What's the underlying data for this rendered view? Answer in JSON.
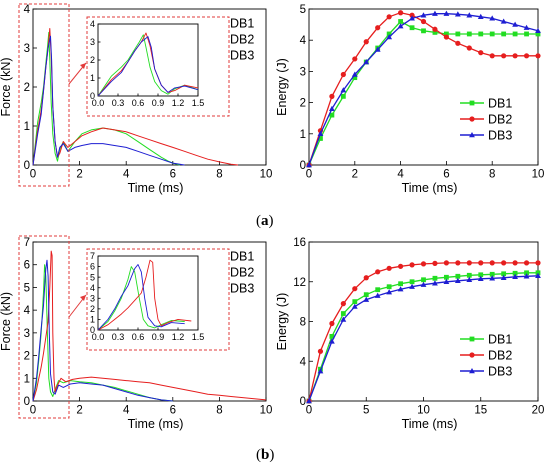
{
  "captions": {
    "a": {
      "open": "(",
      "letter": "a",
      "close": ")"
    },
    "b": {
      "open": "(",
      "letter": "b",
      "close": ")"
    }
  },
  "colors": {
    "DB1": "#22dd22",
    "DB2": "#e61e1e",
    "DB3": "#1e1ed2",
    "callout": "#e23b3b"
  },
  "legend_labels": [
    "DB1",
    "DB2",
    "DB3"
  ],
  "chart_data": [
    {
      "id": "a-force",
      "type": "line",
      "xlabel": "Time (ms)",
      "ylabel": "Force (kN)",
      "xlim": [
        0,
        10
      ],
      "ylim": [
        0,
        4
      ],
      "xticks": [
        0,
        2,
        4,
        6,
        8,
        10
      ],
      "yticks": [
        0,
        1,
        2,
        3,
        4
      ],
      "legend": "top-right",
      "series": [
        {
          "name": "DB1",
          "x": [
            0,
            0.2,
            0.35,
            0.45,
            0.55,
            0.62,
            0.68,
            0.72,
            0.78,
            0.85,
            0.95,
            1.05,
            1.15,
            1.3,
            1.5,
            1.8,
            2.1,
            2.5,
            3,
            3.5,
            4,
            4.5,
            5,
            5.5,
            5.8,
            6,
            6.3
          ],
          "y": [
            0,
            1.1,
            1.6,
            2.0,
            2.6,
            3.0,
            3.4,
            2.7,
            1.6,
            0.8,
            0.3,
            0.1,
            0.4,
            0.6,
            0.35,
            0.6,
            0.8,
            0.9,
            0.95,
            0.9,
            0.8,
            0.6,
            0.4,
            0.2,
            0.1,
            0.05,
            0
          ]
        },
        {
          "name": "DB2",
          "x": [
            0,
            0.2,
            0.35,
            0.45,
            0.55,
            0.65,
            0.72,
            0.78,
            0.85,
            0.95,
            1.05,
            1.15,
            1.3,
            1.5,
            1.8,
            2.1,
            2.5,
            3,
            3.5,
            4,
            4.5,
            5,
            5.5,
            6,
            6.5,
            7,
            7.5,
            8,
            8.5,
            8.8
          ],
          "y": [
            0,
            0.9,
            1.4,
            1.9,
            2.5,
            3.0,
            3.5,
            2.8,
            1.5,
            0.6,
            0.2,
            0.3,
            0.6,
            0.45,
            0.6,
            0.75,
            0.85,
            0.95,
            0.9,
            0.85,
            0.75,
            0.65,
            0.55,
            0.45,
            0.35,
            0.25,
            0.15,
            0.08,
            0.02,
            0
          ]
        },
        {
          "name": "DB3",
          "x": [
            0,
            0.2,
            0.35,
            0.45,
            0.55,
            0.65,
            0.75,
            0.8,
            0.85,
            0.95,
            1.05,
            1.15,
            1.3,
            1.5,
            1.8,
            2.1,
            2.5,
            3,
            3.5,
            4,
            4.5,
            5,
            5.5,
            6,
            6.5
          ],
          "y": [
            0,
            0.8,
            1.3,
            1.9,
            2.5,
            3.0,
            3.3,
            2.7,
            1.5,
            0.6,
            0.2,
            0.45,
            0.55,
            0.35,
            0.45,
            0.5,
            0.55,
            0.55,
            0.5,
            0.45,
            0.35,
            0.25,
            0.15,
            0.05,
            0
          ]
        }
      ],
      "inset": {
        "xlim": [
          0,
          1.5
        ],
        "ylim": [
          0,
          4
        ],
        "xticks": [
          0.0,
          0.3,
          0.6,
          0.9,
          1.2,
          1.5
        ],
        "yticks": [
          0,
          1,
          2,
          3,
          4
        ]
      }
    },
    {
      "id": "a-energy",
      "type": "line",
      "xlabel": "Time (ms)",
      "ylabel": "Energy (J)",
      "xlim": [
        0,
        10
      ],
      "ylim": [
        0,
        5
      ],
      "xticks": [
        0,
        2,
        4,
        6,
        8,
        10
      ],
      "yticks": [
        0,
        1,
        2,
        3,
        4,
        5
      ],
      "legend": "bottom-right",
      "series": [
        {
          "name": "DB1",
          "x": [
            0,
            0.5,
            1,
            1.5,
            2,
            2.5,
            3,
            3.5,
            4,
            4.5,
            5,
            5.5,
            6,
            6.5,
            7,
            7.5,
            8,
            8.5,
            9,
            9.5,
            10
          ],
          "y": [
            0,
            0.85,
            1.6,
            2.2,
            2.8,
            3.3,
            3.75,
            4.2,
            4.6,
            4.4,
            4.3,
            4.25,
            4.2,
            4.2,
            4.2,
            4.2,
            4.2,
            4.2,
            4.2,
            4.2,
            4.2
          ]
        },
        {
          "name": "DB2",
          "x": [
            0,
            0.5,
            1,
            1.5,
            2,
            2.5,
            3,
            3.5,
            4,
            4.5,
            5,
            5.5,
            6,
            6.5,
            7,
            7.5,
            8,
            8.5,
            9,
            9.5,
            10
          ],
          "y": [
            0,
            1.1,
            2.2,
            2.9,
            3.4,
            3.95,
            4.4,
            4.75,
            4.88,
            4.8,
            4.6,
            4.35,
            4.1,
            3.9,
            3.75,
            3.6,
            3.5,
            3.5,
            3.5,
            3.5,
            3.5
          ]
        },
        {
          "name": "DB3",
          "x": [
            0,
            0.5,
            1,
            1.5,
            2,
            2.5,
            3,
            3.5,
            4,
            4.5,
            5,
            5.5,
            6,
            6.5,
            7,
            7.5,
            8,
            8.5,
            9,
            9.5,
            10
          ],
          "y": [
            0,
            1.0,
            1.8,
            2.4,
            2.9,
            3.3,
            3.7,
            4.1,
            4.45,
            4.7,
            4.8,
            4.85,
            4.85,
            4.83,
            4.8,
            4.75,
            4.7,
            4.6,
            4.5,
            4.4,
            4.3
          ]
        }
      ]
    },
    {
      "id": "b-force",
      "type": "line",
      "xlabel": "Time (ms)",
      "ylabel": "Force (kN)",
      "xlim": [
        0,
        10
      ],
      "ylim": [
        0,
        7
      ],
      "xticks": [
        0,
        2,
        4,
        6,
        8,
        10
      ],
      "yticks": [
        0,
        1,
        2,
        3,
        4,
        5,
        6,
        7
      ],
      "legend": "top-right",
      "series": [
        {
          "name": "DB1",
          "x": [
            0,
            0.15,
            0.25,
            0.35,
            0.45,
            0.5,
            0.55,
            0.62,
            0.68,
            0.75,
            0.85,
            0.95,
            1.1,
            1.3,
            1.6,
            2,
            2.5,
            3,
            3.5,
            4,
            4.5,
            5,
            5.5,
            6
          ],
          "y": [
            0,
            0.8,
            1.8,
            3.0,
            4.8,
            6.0,
            5.5,
            3.0,
            1.0,
            0.4,
            0.2,
            0.5,
            0.9,
            0.8,
            0.9,
            0.85,
            0.8,
            0.7,
            0.6,
            0.45,
            0.3,
            0.15,
            0.05,
            0
          ]
        },
        {
          "name": "DB2",
          "x": [
            0,
            0.15,
            0.25,
            0.35,
            0.45,
            0.55,
            0.65,
            0.72,
            0.78,
            0.82,
            0.85,
            0.9,
            0.95,
            1.05,
            1.2,
            1.4,
            1.7,
            2,
            2.5,
            3,
            3.5,
            4,
            4.5,
            5,
            5.5,
            6,
            6.5,
            7,
            7.5,
            8,
            8.5,
            9,
            9.5,
            10
          ],
          "y": [
            0,
            0.5,
            1.0,
            1.5,
            2.1,
            2.8,
            3.5,
            5.0,
            6.6,
            6.4,
            3.0,
            1.0,
            0.4,
            0.7,
            1.0,
            0.85,
            0.95,
            1.0,
            1.05,
            1.0,
            0.95,
            0.9,
            0.85,
            0.8,
            0.7,
            0.6,
            0.5,
            0.4,
            0.3,
            0.25,
            0.2,
            0.15,
            0.1,
            0.05
          ]
        },
        {
          "name": "DB3",
          "x": [
            0,
            0.15,
            0.25,
            0.35,
            0.45,
            0.5,
            0.55,
            0.6,
            0.65,
            0.7,
            0.75,
            0.85,
            0.95,
            1.1,
            1.3,
            1.6,
            2,
            2.5,
            3,
            3.5,
            4,
            4.5,
            5,
            5.5,
            6
          ],
          "y": [
            0,
            1.0,
            2.0,
            3.2,
            4.2,
            5.0,
            5.8,
            6.2,
            5.5,
            3.0,
            1.2,
            0.4,
            0.3,
            0.7,
            0.6,
            0.75,
            0.8,
            0.75,
            0.7,
            0.55,
            0.4,
            0.25,
            0.15,
            0.05,
            0
          ]
        }
      ],
      "inset": {
        "xlim": [
          0,
          1.5
        ],
        "ylim": [
          0,
          7
        ],
        "xticks": [
          0.0,
          0.3,
          0.6,
          0.9,
          1.2,
          1.5
        ],
        "yticks": [
          0,
          1,
          2,
          3,
          4,
          5,
          6,
          7
        ]
      }
    },
    {
      "id": "b-energy",
      "type": "line",
      "xlabel": "Time (ms)",
      "ylabel": "Energy (J)",
      "xlim": [
        0,
        20
      ],
      "ylim": [
        0,
        16
      ],
      "xticks": [
        0,
        5,
        10,
        15,
        20
      ],
      "yticks": [
        0,
        4,
        8,
        12,
        16
      ],
      "legend": "bottom-right",
      "series": [
        {
          "name": "DB1",
          "x": [
            0,
            1,
            2,
            3,
            4,
            5,
            6,
            7,
            8,
            9,
            10,
            11,
            12,
            13,
            14,
            15,
            16,
            17,
            18,
            19,
            20
          ],
          "y": [
            0,
            3.2,
            6.5,
            8.8,
            10.0,
            10.7,
            11.2,
            11.5,
            11.8,
            12.0,
            12.2,
            12.35,
            12.45,
            12.55,
            12.65,
            12.7,
            12.75,
            12.8,
            12.85,
            12.9,
            12.9
          ]
        },
        {
          "name": "DB2",
          "x": [
            0,
            1,
            2,
            3,
            4,
            5,
            6,
            7,
            8,
            9,
            10,
            11,
            12,
            13,
            14,
            15,
            16,
            17,
            18,
            19,
            20
          ],
          "y": [
            0,
            5.0,
            7.8,
            9.8,
            11.3,
            12.4,
            13.0,
            13.35,
            13.55,
            13.7,
            13.8,
            13.85,
            13.9,
            13.9,
            13.9,
            13.9,
            13.9,
            13.9,
            13.9,
            13.9,
            13.9
          ]
        },
        {
          "name": "DB3",
          "x": [
            0,
            1,
            2,
            3,
            4,
            5,
            6,
            7,
            8,
            9,
            10,
            11,
            12,
            13,
            14,
            15,
            16,
            17,
            18,
            19,
            20
          ],
          "y": [
            0,
            3.0,
            6.0,
            8.2,
            9.5,
            10.2,
            10.6,
            10.95,
            11.25,
            11.5,
            11.7,
            11.85,
            12.0,
            12.1,
            12.2,
            12.3,
            12.35,
            12.4,
            12.5,
            12.55,
            12.6
          ]
        }
      ]
    }
  ]
}
